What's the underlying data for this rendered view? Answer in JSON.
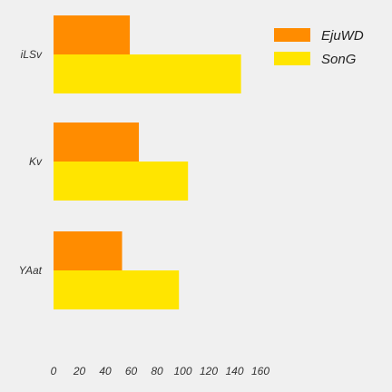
{
  "chart_data": {
    "type": "bar",
    "orientation": "horizontal",
    "title": "",
    "xlabel": "",
    "ylabel": "",
    "categories": [
      "iLSv",
      "Kv",
      "YAat"
    ],
    "series": [
      {
        "name": "EjuWD",
        "color": "#ff8c00",
        "values": [
          59,
          66,
          53
        ]
      },
      {
        "name": "SonG",
        "color": "#ffe500",
        "values": [
          145,
          104,
          97
        ]
      }
    ],
    "xlim": [
      0,
      160
    ],
    "xticks": [
      0,
      20,
      40,
      60,
      80,
      100,
      120,
      140,
      160
    ],
    "grid": false,
    "legend_position": "top-right",
    "background": "#f0f0f0"
  }
}
